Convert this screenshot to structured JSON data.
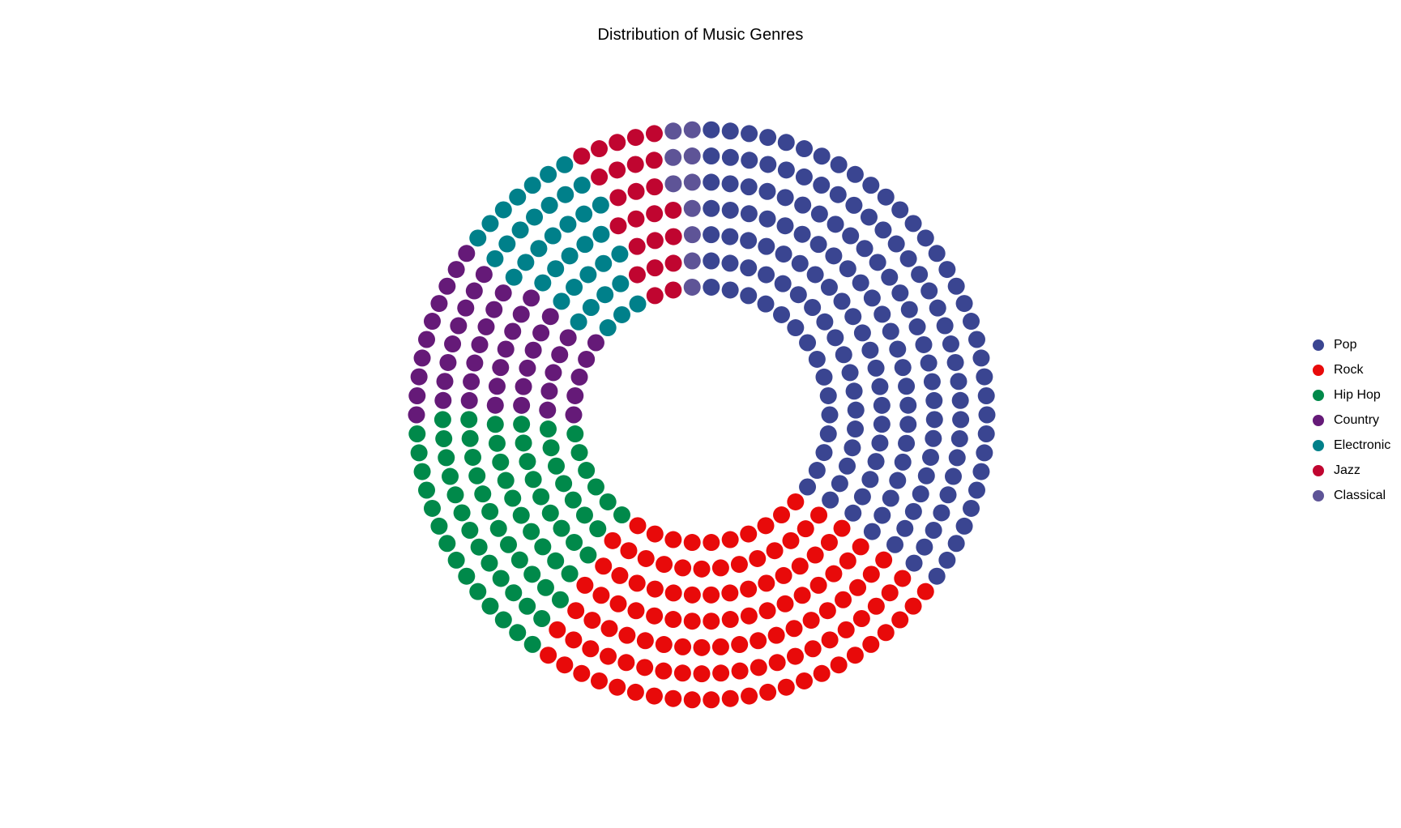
{
  "chart_data": {
    "type": "waffle-donut",
    "title": "Distribution of Music Genres",
    "legend_position": "right",
    "grid": false,
    "categories": [
      "Pop",
      "Rock",
      "Hip Hop",
      "Country",
      "Electronic",
      "Jazz",
      "Classical"
    ],
    "values": [
      35,
      25,
      15,
      10,
      8,
      5,
      2
    ],
    "colors": [
      "#3a4591",
      "#e80a0a",
      "#00894a",
      "#651a78",
      "#00808a",
      "#c00530",
      "#5e5497"
    ]
  }
}
